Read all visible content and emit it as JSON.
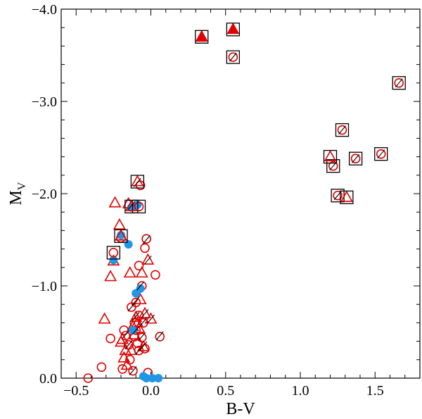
{
  "chart_data": {
    "type": "scatter",
    "title": "",
    "xlabel": "B-V",
    "ylabel_main": "M",
    "ylabel_sub": "V",
    "xlim": [
      -0.6,
      1.8
    ],
    "ylim": [
      0.0,
      -4.0
    ],
    "y_inverted": true,
    "xticks": [
      -0.5,
      0.0,
      0.5,
      1.0,
      1.5
    ],
    "xtick_labels": [
      "−0.5",
      "0.0",
      "0.5",
      "1.0",
      "1.5"
    ],
    "yticks": [
      0.0,
      -1.0,
      -2.0,
      -3.0,
      -4.0
    ],
    "ytick_labels": [
      "0.0",
      "−1.0",
      "−2.0",
      "−3.0",
      "−4.0"
    ],
    "grid": false,
    "legend": "none",
    "colors": {
      "red": "#e00000",
      "blue": "#2196e6",
      "black": "#000000"
    },
    "series": [
      {
        "name": "open-circle",
        "marker": "circle-open",
        "color": "#e00000",
        "points": [
          [
            -0.42,
            0.0
          ],
          [
            -0.33,
            -0.12
          ],
          [
            -0.27,
            -0.43
          ],
          [
            -0.18,
            -0.52
          ],
          [
            -0.17,
            -0.46
          ],
          [
            -0.15,
            -0.36
          ],
          [
            -0.14,
            -0.2
          ],
          [
            -0.12,
            -0.08
          ],
          [
            -0.11,
            -0.45
          ],
          [
            -0.1,
            -0.52
          ],
          [
            -0.09,
            -0.38
          ],
          [
            -0.08,
            -0.3
          ],
          [
            -0.06,
            -0.44
          ],
          [
            -0.05,
            -0.6
          ],
          [
            -0.04,
            -0.32
          ],
          [
            -0.13,
            -0.77
          ],
          [
            -0.1,
            -0.82
          ],
          [
            -0.06,
            -1.0
          ],
          [
            -0.08,
            -1.22
          ],
          [
            -0.04,
            -1.41
          ],
          [
            -0.03,
            -1.51
          ],
          [
            0.06,
            -0.45
          ],
          [
            0.03,
            -1.12
          ],
          [
            -0.2,
            -1.52
          ],
          [
            -0.08,
            -0.68
          ],
          [
            -0.11,
            -0.6
          ],
          [
            -0.19,
            -0.1
          ],
          [
            -0.07,
            -2.09
          ],
          [
            -0.02,
            -0.06
          ]
        ]
      },
      {
        "name": "open-triangle",
        "marker": "triangle-open",
        "color": "#e00000",
        "points": [
          [
            -0.31,
            -0.64
          ],
          [
            -0.27,
            -1.1
          ],
          [
            -0.25,
            -1.27
          ],
          [
            -0.24,
            -1.9
          ],
          [
            -0.21,
            -1.66
          ],
          [
            -0.19,
            -0.42
          ],
          [
            -0.17,
            -0.3
          ],
          [
            -0.15,
            -1.89
          ],
          [
            -0.14,
            -1.14
          ],
          [
            -0.12,
            -0.56
          ],
          [
            -0.1,
            -0.66
          ],
          [
            -0.08,
            -0.54
          ],
          [
            -0.07,
            -0.85
          ],
          [
            -0.06,
            -1.14
          ],
          [
            -0.04,
            -0.7
          ],
          [
            -0.02,
            -1.28
          ],
          [
            0.0,
            -0.64
          ],
          [
            -0.16,
            -0.14
          ],
          [
            -0.2,
            -0.39
          ],
          [
            -0.11,
            -0.47
          ],
          [
            -0.13,
            -0.3
          ],
          [
            -0.09,
            -0.6
          ],
          [
            -0.05,
            -0.34
          ],
          [
            -0.18,
            -0.22
          ]
        ]
      },
      {
        "name": "filled-blue",
        "marker": "circle-filled",
        "color": "#2196e6",
        "points": [
          [
            -0.25,
            -1.28
          ],
          [
            -0.2,
            -1.55
          ],
          [
            -0.15,
            -1.45
          ],
          [
            -0.13,
            -1.85
          ],
          [
            -0.12,
            -0.52
          ],
          [
            -0.1,
            -0.92
          ],
          [
            -0.07,
            -0.97
          ],
          [
            -0.05,
            -0.02
          ],
          [
            -0.03,
            0.0
          ],
          [
            0.01,
            0.0
          ],
          [
            0.05,
            0.0
          ],
          [
            -0.09,
            -1.88
          ]
        ]
      },
      {
        "name": "filled-red-triangle",
        "marker": "triangle-filled",
        "color": "#e00000",
        "points": [
          [
            0.34,
            -3.69
          ],
          [
            0.55,
            -3.78
          ]
        ]
      },
      {
        "name": "boxed-circle",
        "marker": "circle-open",
        "color": "#e00000",
        "boxed": true,
        "points": [
          [
            0.55,
            -3.48
          ],
          [
            1.66,
            -3.2
          ],
          [
            1.28,
            -2.69
          ],
          [
            1.22,
            -2.3
          ],
          [
            1.37,
            -2.38
          ],
          [
            1.54,
            -2.43
          ],
          [
            1.25,
            -1.98
          ],
          [
            -0.25,
            -1.36
          ],
          [
            -0.08,
            -1.86
          ]
        ]
      },
      {
        "name": "boxed-triangle",
        "marker": "triangle-open",
        "color": "#e00000",
        "boxed": true,
        "points": [
          [
            0.34,
            -3.7
          ],
          [
            0.55,
            -3.78
          ],
          [
            1.2,
            -2.4
          ],
          [
            1.31,
            -1.96
          ],
          [
            -0.2,
            -1.54
          ],
          [
            -0.13,
            -1.86
          ],
          [
            -0.09,
            -2.13
          ]
        ]
      },
      {
        "name": "slash-overlay",
        "marker": "slash",
        "color": "#000000",
        "points": [
          [
            -0.06,
            -0.45
          ],
          [
            -0.05,
            -0.61
          ],
          [
            -0.03,
            -1.5
          ],
          [
            0.06,
            -0.46
          ],
          [
            -0.07,
            -1.0
          ],
          [
            -0.13,
            -0.77
          ],
          [
            -0.1,
            -0.84
          ],
          [
            -0.08,
            -0.3
          ],
          [
            -0.1,
            -0.52
          ],
          [
            -0.15,
            -0.36
          ],
          [
            -0.17,
            -0.47
          ],
          [
            -0.12,
            -0.08
          ],
          [
            -0.04,
            -0.7
          ],
          [
            -0.02,
            -1.28
          ],
          [
            -0.09,
            -2.12
          ],
          [
            -0.13,
            -1.87
          ],
          [
            -0.1,
            -0.67
          ],
          [
            0.0,
            -0.64
          ],
          [
            -0.05,
            -0.35
          ],
          [
            0.55,
            -3.48
          ],
          [
            1.28,
            -2.69
          ],
          [
            1.22,
            -2.3
          ],
          [
            1.54,
            -2.43
          ],
          [
            1.25,
            -1.98
          ],
          [
            1.37,
            -2.38
          ],
          [
            1.66,
            -3.2
          ]
        ]
      }
    ]
  }
}
